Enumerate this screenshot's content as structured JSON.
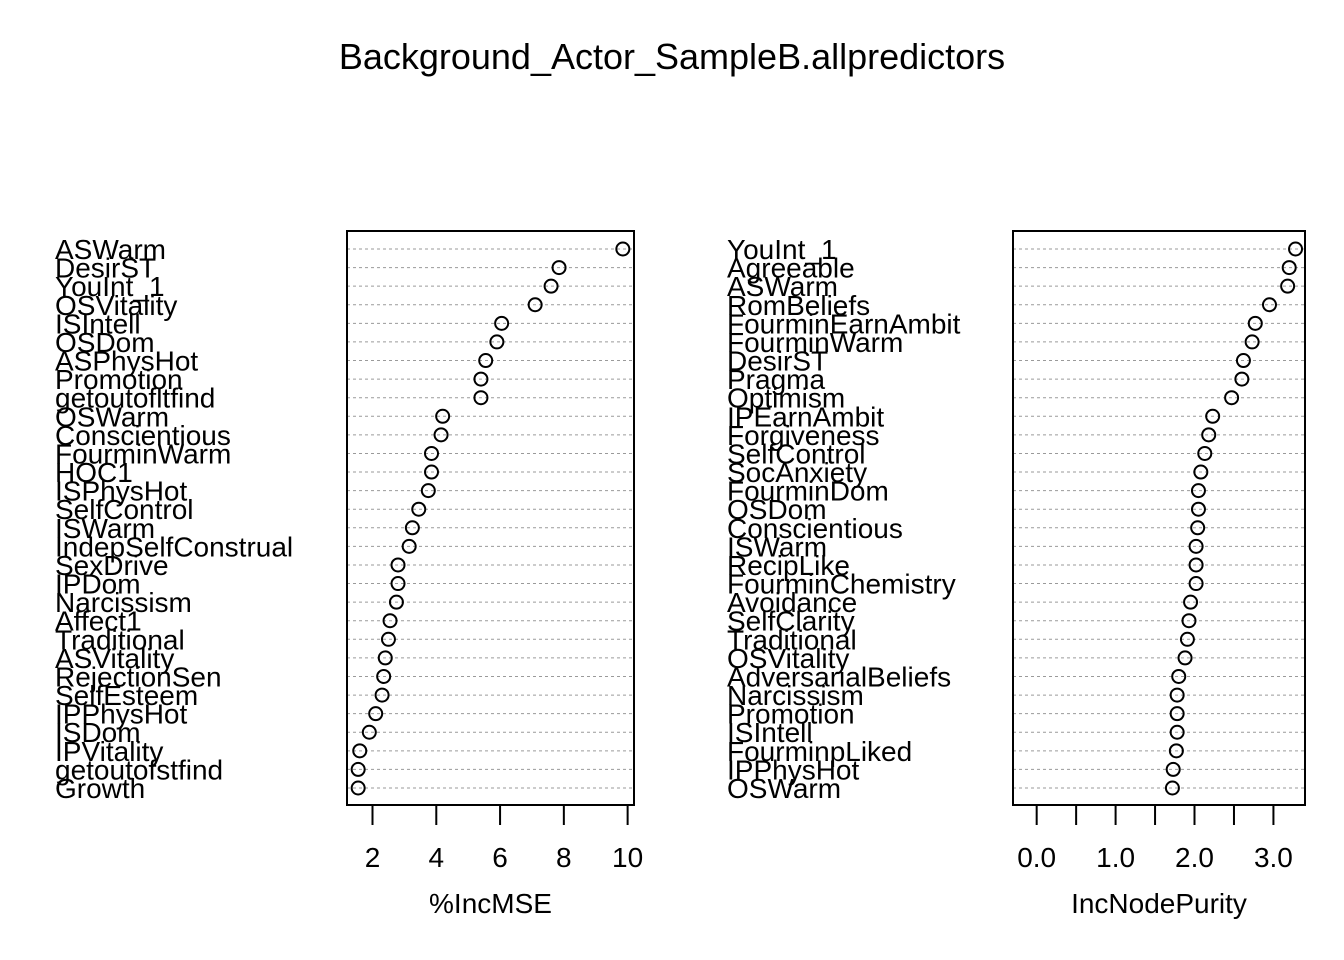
{
  "title": "Background_Actor_SampleB.allpredictors",
  "chart_data": [
    {
      "type": "scatter",
      "xlabel": "%IncMSE",
      "xlim": [
        1.2,
        10.2
      ],
      "xticks": [
        2,
        4,
        6,
        8,
        10
      ],
      "xtick_labels": [
        "2",
        "4",
        "6",
        "8",
        "10"
      ],
      "grid": "dotted horizontal lines",
      "categories": [
        "ASWarm",
        "DesirST",
        "YouInt_1",
        "OSVitality",
        "ISIntell",
        "OSDom",
        "ASPhysHot",
        "Promotion",
        "getoutofltfind",
        "OSWarm",
        "Conscientious",
        "FourminWarm",
        "HOC1",
        "ISPhysHot",
        "SelfControl",
        "ISWarm",
        "IndepSelfConstrual",
        "SexDrive",
        "IPDom",
        "Narcissism",
        "Affect1",
        "Traditional",
        "ASVitality",
        "RejectionSen",
        "SelfEsteem",
        "IPPhysHot",
        "ISDom",
        "IPVitality",
        "getoutofstfind",
        "Growth"
      ],
      "values": [
        9.85,
        7.85,
        7.6,
        7.1,
        6.05,
        5.9,
        5.55,
        5.4,
        5.4,
        4.2,
        4.15,
        3.85,
        3.85,
        3.75,
        3.45,
        3.25,
        3.15,
        2.8,
        2.8,
        2.75,
        2.55,
        2.5,
        2.4,
        2.35,
        2.3,
        2.1,
        1.9,
        1.6,
        1.55,
        1.55
      ]
    },
    {
      "type": "scatter",
      "xlabel": "IncNodePurity",
      "xlim": [
        -0.3,
        3.4
      ],
      "xticks": [
        0.0,
        0.5,
        1.0,
        1.5,
        2.0,
        2.5,
        3.0
      ],
      "xtick_labels": [
        "0.0",
        "",
        "1.0",
        "",
        "2.0",
        "",
        "3.0"
      ],
      "grid": "dotted horizontal lines",
      "categories": [
        "YouInt_1",
        "Agreeable",
        "ASWarm",
        "RomBeliefs",
        "FourminEarnAmbit",
        "FourminWarm",
        "DesirST",
        "Pragma",
        "Optimism",
        "IPEarnAmbit",
        "Forgiveness",
        "SelfControl",
        "SocAnxiety",
        "FourminDom",
        "OSDom",
        "Conscientious",
        "ISWarm",
        "RecipLike",
        "FourminChemistry",
        "Avoidance",
        "SelfClarity",
        "Traditional",
        "OSVitality",
        "AdversarialBeliefs",
        "Narcissism",
        "Promotion",
        "ISIntell",
        "FourminpLiked",
        "IPPhysHot",
        "OSWarm"
      ],
      "values": [
        3.28,
        3.2,
        3.18,
        2.95,
        2.77,
        2.73,
        2.62,
        2.6,
        2.47,
        2.23,
        2.18,
        2.13,
        2.08,
        2.05,
        2.05,
        2.04,
        2.02,
        2.02,
        2.02,
        1.95,
        1.93,
        1.91,
        1.88,
        1.8,
        1.78,
        1.78,
        1.78,
        1.77,
        1.73,
        1.72
      ]
    }
  ]
}
